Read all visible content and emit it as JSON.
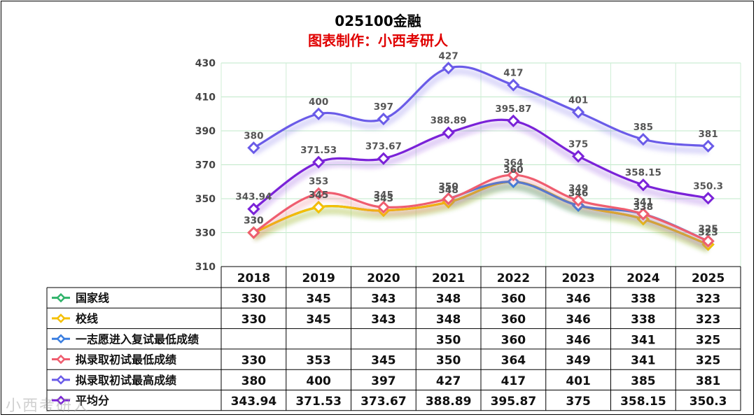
{
  "title": "025100金融",
  "subtitle": "图表制作：小西考研人",
  "watermark": "小西考研人",
  "chart_data": {
    "type": "line",
    "categories": [
      "2018",
      "2019",
      "2020",
      "2021",
      "2022",
      "2023",
      "2024",
      "2025"
    ],
    "ylim": [
      310,
      430
    ],
    "yticks": [
      310,
      330,
      350,
      370,
      390,
      410,
      430
    ],
    "grid": true,
    "legend": "data-table",
    "series": [
      {
        "name": "国家线",
        "color": "#2fb36a",
        "values": [
          330,
          345,
          343,
          348,
          360,
          346,
          338,
          323
        ],
        "labels": [
          "330",
          "345",
          "343",
          "348",
          "360",
          "346",
          "338",
          "323"
        ]
      },
      {
        "name": "校线",
        "color": "#f5c000",
        "values": [
          330,
          345,
          343,
          348,
          360,
          346,
          338,
          323
        ],
        "labels": [
          "330",
          "345",
          "343",
          "348",
          "360",
          "346",
          "338",
          "323"
        ]
      },
      {
        "name": "一志愿进入复试最低成绩",
        "color": "#3a7ee0",
        "values": [
          null,
          null,
          null,
          350,
          360,
          346,
          341,
          325
        ],
        "labels": [
          "",
          "",
          "",
          "350",
          "360",
          "346",
          "341",
          "325"
        ]
      },
      {
        "name": "拟录取初试最低成绩",
        "color": "#ef5d6f",
        "values": [
          330,
          353,
          345,
          350,
          364,
          349,
          341,
          325
        ],
        "labels": [
          "330",
          "353",
          "345",
          "350",
          "364",
          "349",
          "341",
          "325"
        ]
      },
      {
        "name": "拟录取初试最高成绩",
        "color": "#6a5be8",
        "values": [
          380,
          400,
          397,
          427,
          417,
          401,
          385,
          381
        ],
        "labels": [
          "380",
          "400",
          "397",
          "427",
          "417",
          "401",
          "385",
          "381"
        ]
      },
      {
        "name": "平均分",
        "color": "#7a22d8",
        "values": [
          343.94,
          371.53,
          373.67,
          388.89,
          395.87,
          375,
          358.15,
          350.3
        ],
        "labels": [
          "343.94",
          "371.53",
          "373.67",
          "388.89",
          "395.87",
          "375",
          "358.15",
          "350.3"
        ]
      }
    ]
  }
}
